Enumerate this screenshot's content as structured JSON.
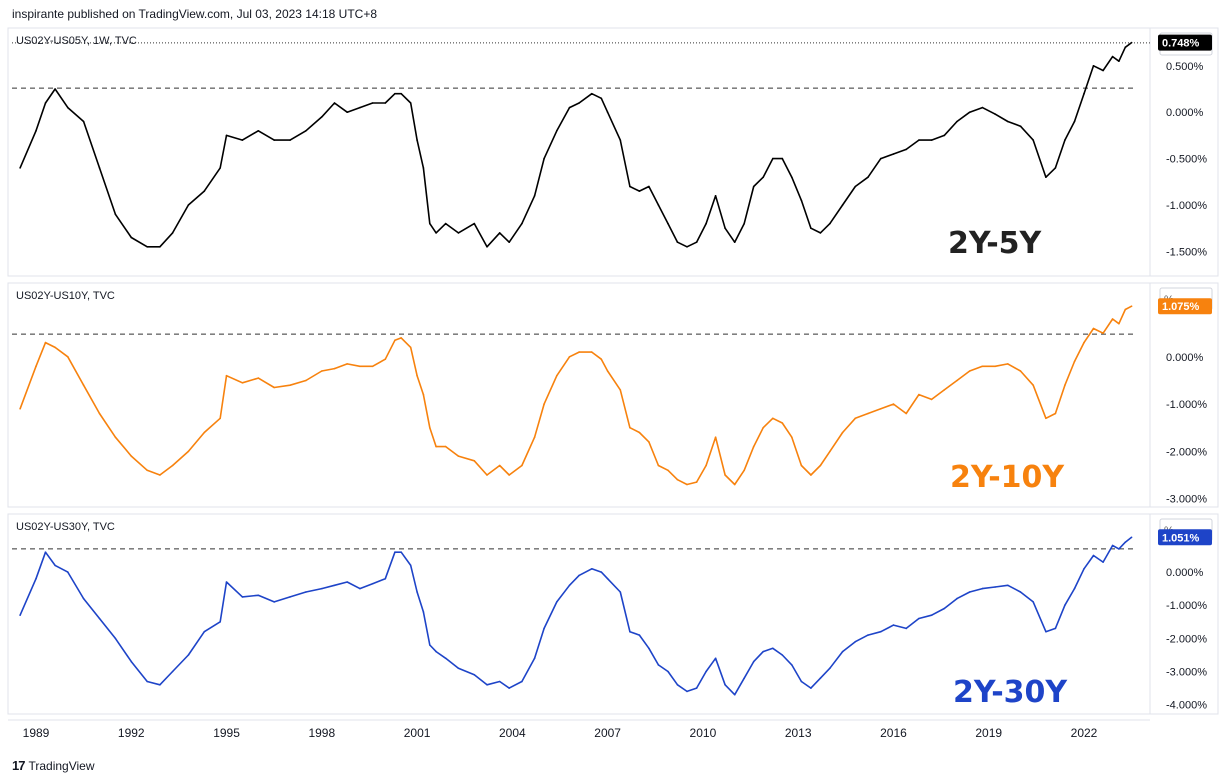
{
  "header": {
    "published": "inspirante published on TradingView.com, Jul 03, 2023 14:18 UTC+8"
  },
  "footer": {
    "brand": "TradingView"
  },
  "unit_symbol": "%",
  "x_ticks": [
    "1989",
    "1992",
    "1995",
    "1998",
    "2001",
    "2004",
    "2007",
    "2010",
    "2013",
    "2016",
    "2019",
    "2022"
  ],
  "chart_data": [
    {
      "type": "line",
      "symbol": "US02Y-US05Y, 1W, TVC",
      "overlay_label": "2Y-5Y",
      "color": "#000000",
      "last_value_label": "0.748%",
      "tag_color": "#000000",
      "ylim": [
        -1.7,
        0.8
      ],
      "yticks": [
        "0.500%",
        "0.000%",
        "-0.500%",
        "-1.000%",
        "-1.500%"
      ],
      "ytick_values": [
        0.5,
        0.0,
        -0.5,
        -1.0,
        -1.5
      ],
      "resistance": 0.26,
      "current_line": 0.748,
      "x": [
        1988.5,
        1989.0,
        1989.3,
        1989.6,
        1990.0,
        1990.5,
        1991.0,
        1991.5,
        1992.0,
        1992.5,
        1992.9,
        1993.3,
        1993.8,
        1994.3,
        1994.8,
        1995.0,
        1995.5,
        1996.0,
        1996.5,
        1997.0,
        1997.5,
        1998.0,
        1998.4,
        1998.8,
        1999.2,
        1999.6,
        2000.0,
        2000.3,
        2000.5,
        2000.8,
        2001.0,
        2001.2,
        2001.4,
        2001.6,
        2001.9,
        2002.3,
        2002.8,
        2003.2,
        2003.6,
        2003.9,
        2004.3,
        2004.7,
        2005.0,
        2005.4,
        2005.8,
        2006.1,
        2006.5,
        2006.8,
        2007.0,
        2007.4,
        2007.7,
        2008.0,
        2008.3,
        2008.6,
        2008.9,
        2009.2,
        2009.5,
        2009.8,
        2010.1,
        2010.4,
        2010.7,
        2011.0,
        2011.3,
        2011.6,
        2011.9,
        2012.2,
        2012.5,
        2012.8,
        2013.1,
        2013.4,
        2013.7,
        2014.0,
        2014.4,
        2014.8,
        2015.2,
        2015.6,
        2016.0,
        2016.4,
        2016.8,
        2017.2,
        2017.6,
        2018.0,
        2018.4,
        2018.8,
        2019.2,
        2019.6,
        2020.0,
        2020.4,
        2020.8,
        2021.1,
        2021.4,
        2021.7,
        2022.0,
        2022.3,
        2022.6,
        2022.9,
        2023.1,
        2023.3,
        2023.5
      ],
      "y": [
        -0.6,
        -0.2,
        0.1,
        0.25,
        0.05,
        -0.1,
        -0.6,
        -1.1,
        -1.35,
        -1.45,
        -1.45,
        -1.3,
        -1.0,
        -0.85,
        -0.6,
        -0.25,
        -0.3,
        -0.2,
        -0.3,
        -0.3,
        -0.2,
        -0.05,
        0.1,
        0.0,
        0.05,
        0.1,
        0.1,
        0.2,
        0.2,
        0.1,
        -0.3,
        -0.6,
        -1.2,
        -1.3,
        -1.2,
        -1.3,
        -1.2,
        -1.45,
        -1.3,
        -1.4,
        -1.2,
        -0.9,
        -0.5,
        -0.2,
        0.05,
        0.1,
        0.2,
        0.15,
        0.0,
        -0.3,
        -0.8,
        -0.85,
        -0.8,
        -1.0,
        -1.2,
        -1.4,
        -1.45,
        -1.4,
        -1.2,
        -0.9,
        -1.25,
        -1.4,
        -1.2,
        -0.8,
        -0.7,
        -0.5,
        -0.5,
        -0.7,
        -0.95,
        -1.25,
        -1.3,
        -1.2,
        -1.0,
        -0.8,
        -0.7,
        -0.5,
        -0.45,
        -0.4,
        -0.3,
        -0.3,
        -0.25,
        -0.1,
        0.0,
        0.05,
        -0.02,
        -0.1,
        -0.15,
        -0.3,
        -0.7,
        -0.6,
        -0.3,
        -0.1,
        0.2,
        0.5,
        0.45,
        0.6,
        0.55,
        0.7,
        0.75
      ]
    },
    {
      "type": "line",
      "symbol": "US02Y-US10Y, TVC",
      "overlay_label": "2Y-10Y",
      "color": "#f7820e",
      "last_value_label": "1.075%",
      "tag_color": "#f7820e",
      "ylim": [
        -3.05,
        1.35
      ],
      "yticks": [
        "0.000%",
        "-1.000%",
        "-2.000%",
        "-3.000%"
      ],
      "ytick_values": [
        0.0,
        -1.0,
        -2.0,
        -3.0
      ],
      "resistance": 0.48,
      "current_line": null,
      "x": [
        1988.5,
        1989.0,
        1989.3,
        1989.6,
        1990.0,
        1990.5,
        1991.0,
        1991.5,
        1992.0,
        1992.5,
        1992.9,
        1993.3,
        1993.8,
        1994.3,
        1994.8,
        1995.0,
        1995.5,
        1996.0,
        1996.5,
        1997.0,
        1997.5,
        1998.0,
        1998.4,
        1998.8,
        1999.2,
        1999.6,
        2000.0,
        2000.3,
        2000.5,
        2000.8,
        2001.0,
        2001.2,
        2001.4,
        2001.6,
        2001.9,
        2002.3,
        2002.8,
        2003.2,
        2003.6,
        2003.9,
        2004.3,
        2004.7,
        2005.0,
        2005.4,
        2005.8,
        2006.1,
        2006.5,
        2006.8,
        2007.0,
        2007.4,
        2007.7,
        2008.0,
        2008.3,
        2008.6,
        2008.9,
        2009.2,
        2009.5,
        2009.8,
        2010.1,
        2010.4,
        2010.7,
        2011.0,
        2011.3,
        2011.6,
        2011.9,
        2012.2,
        2012.5,
        2012.8,
        2013.1,
        2013.4,
        2013.7,
        2014.0,
        2014.4,
        2014.8,
        2015.2,
        2015.6,
        2016.0,
        2016.4,
        2016.8,
        2017.2,
        2017.6,
        2018.0,
        2018.4,
        2018.8,
        2019.2,
        2019.6,
        2020.0,
        2020.4,
        2020.8,
        2021.1,
        2021.4,
        2021.7,
        2022.0,
        2022.3,
        2022.6,
        2022.9,
        2023.1,
        2023.3,
        2023.5
      ],
      "y": [
        -1.1,
        -0.2,
        0.3,
        0.2,
        0.0,
        -0.6,
        -1.2,
        -1.7,
        -2.1,
        -2.4,
        -2.5,
        -2.3,
        -2.0,
        -1.6,
        -1.3,
        -0.4,
        -0.55,
        -0.45,
        -0.65,
        -0.6,
        -0.5,
        -0.3,
        -0.25,
        -0.15,
        -0.2,
        -0.2,
        -0.05,
        0.35,
        0.4,
        0.2,
        -0.4,
        -0.8,
        -1.5,
        -1.9,
        -1.9,
        -2.1,
        -2.2,
        -2.5,
        -2.3,
        -2.5,
        -2.3,
        -1.7,
        -1.0,
        -0.4,
        0.0,
        0.1,
        0.1,
        -0.05,
        -0.3,
        -0.7,
        -1.5,
        -1.6,
        -1.8,
        -2.3,
        -2.4,
        -2.6,
        -2.7,
        -2.65,
        -2.3,
        -1.7,
        -2.5,
        -2.7,
        -2.4,
        -1.9,
        -1.5,
        -1.3,
        -1.4,
        -1.7,
        -2.3,
        -2.5,
        -2.3,
        -2.0,
        -1.6,
        -1.3,
        -1.2,
        -1.1,
        -1.0,
        -1.2,
        -0.8,
        -0.9,
        -0.7,
        -0.5,
        -0.3,
        -0.2,
        -0.2,
        -0.15,
        -0.3,
        -0.6,
        -1.3,
        -1.2,
        -0.6,
        -0.1,
        0.3,
        0.6,
        0.5,
        0.8,
        0.7,
        1.0,
        1.07
      ]
    },
    {
      "type": "line",
      "symbol": "US02Y-US30Y, TVC",
      "overlay_label": "2Y-30Y",
      "color": "#1e44c8",
      "last_value_label": "1.051%",
      "tag_color": "#1e44c8",
      "ylim": [
        -4.1,
        1.45
      ],
      "yticks": [
        "0.000%",
        "-1.000%",
        "-2.000%",
        "-3.000%",
        "-4.000%"
      ],
      "ytick_values": [
        0.0,
        -1.0,
        -2.0,
        -3.0,
        -4.0
      ],
      "resistance": 0.7,
      "current_line": null,
      "x": [
        1988.5,
        1989.0,
        1989.3,
        1989.6,
        1990.0,
        1990.5,
        1991.0,
        1991.5,
        1992.0,
        1992.5,
        1992.9,
        1993.3,
        1993.8,
        1994.3,
        1994.8,
        1995.0,
        1995.5,
        1996.0,
        1996.5,
        1997.0,
        1997.5,
        1998.0,
        1998.4,
        1998.8,
        1999.2,
        1999.6,
        2000.0,
        2000.3,
        2000.5,
        2000.8,
        2001.0,
        2001.2,
        2001.4,
        2001.6,
        2001.9,
        2002.3,
        2002.8,
        2003.2,
        2003.6,
        2003.9,
        2004.3,
        2004.7,
        2005.0,
        2005.4,
        2005.8,
        2006.1,
        2006.5,
        2006.8,
        2007.0,
        2007.4,
        2007.7,
        2008.0,
        2008.3,
        2008.6,
        2008.9,
        2009.2,
        2009.5,
        2009.8,
        2010.1,
        2010.4,
        2010.7,
        2011.0,
        2011.3,
        2011.6,
        2011.9,
        2012.2,
        2012.5,
        2012.8,
        2013.1,
        2013.4,
        2013.7,
        2014.0,
        2014.4,
        2014.8,
        2015.2,
        2015.6,
        2016.0,
        2016.4,
        2016.8,
        2017.2,
        2017.6,
        2018.0,
        2018.4,
        2018.8,
        2019.2,
        2019.6,
        2020.0,
        2020.4,
        2020.8,
        2021.1,
        2021.4,
        2021.7,
        2022.0,
        2022.3,
        2022.6,
        2022.9,
        2023.1,
        2023.3,
        2023.5
      ],
      "y": [
        -1.3,
        -0.2,
        0.6,
        0.2,
        0.0,
        -0.8,
        -1.4,
        -2.0,
        -2.7,
        -3.3,
        -3.4,
        -3.0,
        -2.5,
        -1.8,
        -1.5,
        -0.3,
        -0.75,
        -0.7,
        -0.9,
        -0.75,
        -0.6,
        -0.5,
        -0.4,
        -0.3,
        -0.5,
        -0.35,
        -0.2,
        0.6,
        0.6,
        0.2,
        -0.6,
        -1.2,
        -2.2,
        -2.4,
        -2.6,
        -2.9,
        -3.1,
        -3.4,
        -3.3,
        -3.5,
        -3.3,
        -2.6,
        -1.7,
        -0.9,
        -0.4,
        -0.1,
        0.1,
        0.0,
        -0.2,
        -0.6,
        -1.8,
        -1.9,
        -2.3,
        -2.8,
        -3.0,
        -3.4,
        -3.6,
        -3.5,
        -3.0,
        -2.6,
        -3.4,
        -3.7,
        -3.2,
        -2.7,
        -2.4,
        -2.3,
        -2.5,
        -2.8,
        -3.3,
        -3.5,
        -3.2,
        -2.9,
        -2.4,
        -2.1,
        -1.9,
        -1.8,
        -1.6,
        -1.7,
        -1.4,
        -1.3,
        -1.1,
        -0.8,
        -0.6,
        -0.5,
        -0.45,
        -0.4,
        -0.6,
        -0.9,
        -1.8,
        -1.7,
        -1.0,
        -0.5,
        0.1,
        0.5,
        0.3,
        0.8,
        0.7,
        0.9,
        1.05
      ]
    }
  ]
}
